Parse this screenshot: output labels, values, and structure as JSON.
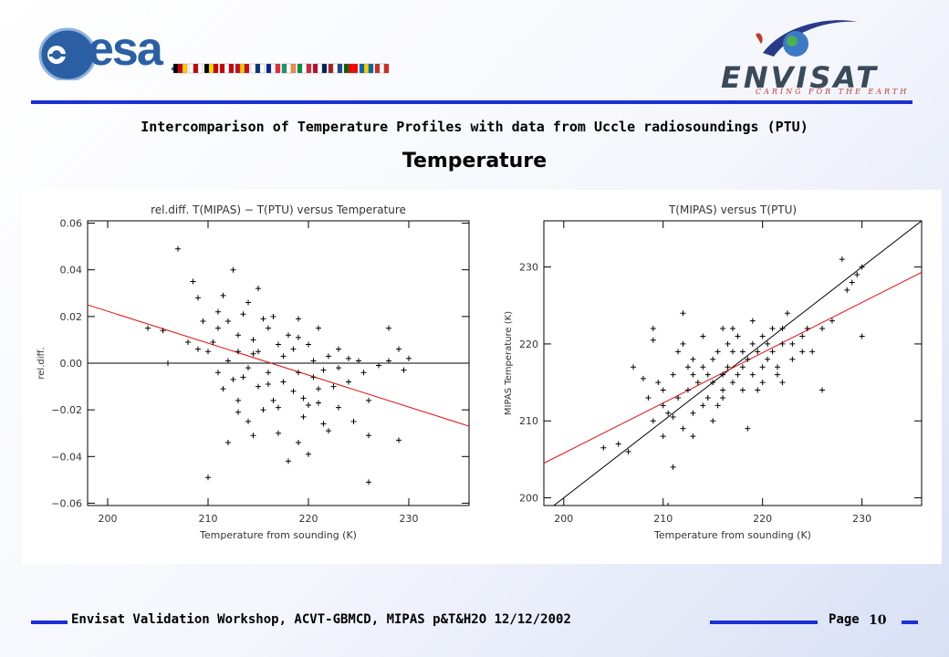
{
  "header": {
    "esa_logo_text": "esa",
    "envisat_logo_text": "ENVISAT",
    "envisat_tagline": "CARING FOR THE EARTH",
    "flag_colors": [
      [
        "#000000",
        "#d00000",
        "#ffce00"
      ],
      [
        "#ffffff",
        "#d00000",
        "#ffffff"
      ],
      [
        "#000000",
        "#ffd700",
        "#d00000"
      ],
      [
        "#d00000",
        "#ffffff",
        "#d00000"
      ],
      [
        "#c60b1e",
        "#ffc400",
        "#c60b1e"
      ],
      [
        "#ffffff",
        "#003580",
        "#ffffff"
      ],
      [
        "#002395",
        "#ffffff",
        "#ed2939"
      ],
      [
        "#169b62",
        "#ffffff",
        "#ff883e"
      ],
      [
        "#009246",
        "#ffffff",
        "#ce2b37"
      ],
      [
        "#ba0c2f",
        "#ffffff",
        "#00205b"
      ],
      [
        "#ae1c28",
        "#ffffff",
        "#21468b"
      ],
      [
        "#006600",
        "#ff0000",
        "#ff0000"
      ],
      [
        "#006aa7",
        "#fecc00",
        "#006aa7"
      ],
      [
        "#d52b1e",
        "#ffffff",
        "#d52b1e"
      ]
    ]
  },
  "subtitle": "Intercomparison of Temperature Profiles with data from Uccle radiosoundings (PTU)",
  "heading": "Temperature",
  "footer": {
    "text": "Envisat Validation Workshop, ACVT-GBMCD,  MIPAS p&T&H2O 12/12/2002",
    "page_label": "Page",
    "page_number": "10"
  },
  "colors": {
    "accent_blue": "#1a2fd6",
    "fit_line": "#e01010"
  },
  "chart_data": [
    {
      "type": "scatter",
      "title": "rel.diff. T(MIPAS) − T(PTU) versus Temperature",
      "xlabel": "Temperature from sounding (K)",
      "ylabel": "rel.diff.",
      "xlim": [
        198,
        236
      ],
      "ylim": [
        -0.061,
        0.061
      ],
      "xticks": [
        200,
        210,
        220,
        230
      ],
      "xtick_labels": [
        "200",
        "210",
        "220",
        "230"
      ],
      "yticks": [
        -0.06,
        -0.04,
        -0.02,
        0.0,
        0.02,
        0.04,
        0.06
      ],
      "ytick_labels": [
        "−0.06",
        "−0.04",
        "−0.02",
        "0.00",
        "0.02",
        "0.04",
        "0.06"
      ],
      "grid": false,
      "reference_line": {
        "x": [
          198,
          236
        ],
        "y": [
          0,
          0
        ]
      },
      "fit_line": {
        "x": [
          198,
          236
        ],
        "y": [
          0.025,
          -0.027
        ]
      },
      "points": [
        [
          204,
          0.015
        ],
        [
          205.5,
          0.014
        ],
        [
          206,
          0
        ],
        [
          207,
          0.049
        ],
        [
          208.5,
          0.035
        ],
        [
          209,
          0.028
        ],
        [
          209,
          0.006
        ],
        [
          210,
          0.005
        ],
        [
          210,
          -0.049
        ],
        [
          211,
          0.015
        ],
        [
          211,
          -0.004
        ],
        [
          211.5,
          0.029
        ],
        [
          212,
          -0.034
        ],
        [
          212,
          0.001
        ],
        [
          212.5,
          0.04
        ],
        [
          213,
          0.012
        ],
        [
          213,
          -0.016
        ],
        [
          213.5,
          -0.006
        ],
        [
          214,
          0.026
        ],
        [
          214,
          -0.025
        ],
        [
          214.5,
          0.004
        ],
        [
          215,
          0.032
        ],
        [
          215,
          -0.01
        ],
        [
          215.5,
          0.019
        ],
        [
          216,
          -0.004
        ],
        [
          216,
          0.015
        ],
        [
          216.5,
          -0.016
        ],
        [
          217,
          0.008
        ],
        [
          217,
          -0.03
        ],
        [
          217.5,
          0.003
        ],
        [
          218,
          -0.042
        ],
        [
          218,
          0.012
        ],
        [
          218.5,
          -0.012
        ],
        [
          219,
          0.019
        ],
        [
          219,
          -0.004
        ],
        [
          219.5,
          -0.023
        ],
        [
          220,
          0.008
        ],
        [
          220,
          -0.039
        ],
        [
          220.5,
          -0.006
        ],
        [
          221,
          0.015
        ],
        [
          221,
          -0.017
        ],
        [
          221.5,
          -0.026
        ],
        [
          222,
          0.003
        ],
        [
          222.5,
          -0.01
        ],
        [
          223,
          -0.019
        ],
        [
          223,
          0.006
        ],
        [
          224,
          -0.008
        ],
        [
          224.5,
          -0.025
        ],
        [
          225,
          0.001
        ],
        [
          225.5,
          -0.004
        ],
        [
          226,
          -0.051
        ],
        [
          226,
          -0.016
        ],
        [
          227,
          -0.001
        ],
        [
          228,
          0.015
        ],
        [
          229,
          -0.033
        ],
        [
          229.5,
          -0.003
        ],
        [
          230,
          0.002
        ],
        [
          213,
          0.005
        ],
        [
          214.5,
          0.01
        ],
        [
          215.5,
          -0.02
        ],
        [
          216.5,
          0.02
        ],
        [
          217.5,
          -0.008
        ],
        [
          218.5,
          0.006
        ],
        [
          219.5,
          -0.015
        ],
        [
          220.5,
          0.001
        ],
        [
          221.5,
          -0.003
        ],
        [
          212,
          0.018
        ],
        [
          213.5,
          0.021
        ],
        [
          210.5,
          0.009
        ],
        [
          211.5,
          -0.011
        ],
        [
          217,
          -0.019
        ],
        [
          219,
          -0.034
        ],
        [
          222,
          -0.029
        ],
        [
          224,
          0.002
        ],
        [
          215,
          0.005
        ],
        [
          216,
          -0.009
        ],
        [
          214,
          -0.002
        ],
        [
          211,
          0.022
        ],
        [
          212.5,
          -0.007
        ],
        [
          213,
          -0.021
        ],
        [
          219,
          0.011
        ],
        [
          220,
          -0.018
        ],
        [
          221,
          -0.011
        ],
        [
          223,
          -0.002
        ],
        [
          226,
          -0.031
        ],
        [
          228,
          0.001
        ],
        [
          229,
          0.006
        ],
        [
          208,
          0.009
        ],
        [
          209.5,
          0.018
        ],
        [
          214.5,
          -0.031
        ]
      ]
    },
    {
      "type": "scatter",
      "title": "T(MIPAS) versus T(PTU)",
      "xlabel": "Temperature from sounding (K)",
      "ylabel": "MIPAS Temperature (K)",
      "xlim": [
        198,
        236
      ],
      "ylim": [
        199,
        236
      ],
      "xticks": [
        200,
        210,
        220,
        230
      ],
      "xtick_labels": [
        "200",
        "210",
        "220",
        "230"
      ],
      "yticks": [
        200,
        210,
        220,
        230
      ],
      "ytick_labels": [
        "200",
        "210",
        "220",
        "230"
      ],
      "grid": false,
      "reference_line": {
        "x": [
          198,
          236
        ],
        "y": [
          198,
          236
        ]
      },
      "fit_line": {
        "x": [
          198,
          236
        ],
        "y": [
          204.5,
          229.3
        ]
      },
      "points": [
        [
          204,
          206.5
        ],
        [
          205.5,
          207
        ],
        [
          206.5,
          206
        ],
        [
          207,
          217
        ],
        [
          208,
          215.5
        ],
        [
          208.5,
          213
        ],
        [
          209,
          210
        ],
        [
          209,
          222
        ],
        [
          210,
          214
        ],
        [
          210,
          208
        ],
        [
          210.5,
          211
        ],
        [
          211,
          216
        ],
        [
          211,
          204
        ],
        [
          211.5,
          213
        ],
        [
          212,
          220
        ],
        [
          212,
          224
        ],
        [
          212.5,
          214
        ],
        [
          213,
          218
        ],
        [
          213,
          208
        ],
        [
          213.5,
          215
        ],
        [
          214,
          212
        ],
        [
          214,
          221
        ],
        [
          214.5,
          216
        ],
        [
          215,
          218
        ],
        [
          215,
          210
        ],
        [
          215.5,
          219
        ],
        [
          216,
          214
        ],
        [
          216,
          222
        ],
        [
          216.5,
          217
        ],
        [
          217,
          215
        ],
        [
          217,
          219
        ],
        [
          217.5,
          221
        ],
        [
          218,
          214
        ],
        [
          218,
          217
        ],
        [
          218.5,
          209
        ],
        [
          219,
          216
        ],
        [
          219,
          223
        ],
        [
          219.5,
          219
        ],
        [
          220,
          215
        ],
        [
          220,
          221
        ],
        [
          220.5,
          218
        ],
        [
          221,
          222
        ],
        [
          221.5,
          216
        ],
        [
          222,
          220
        ],
        [
          222.5,
          224
        ],
        [
          223,
          218
        ],
        [
          224,
          221
        ],
        [
          224.5,
          222
        ],
        [
          225,
          219
        ],
        [
          226,
          214
        ],
        [
          226,
          222
        ],
        [
          227,
          223
        ],
        [
          228,
          231
        ],
        [
          228.5,
          227
        ],
        [
          229,
          228
        ],
        [
          229.5,
          229
        ],
        [
          230,
          230
        ],
        [
          230,
          221
        ],
        [
          212,
          209
        ],
        [
          213,
          211
        ],
        [
          214.5,
          213
        ],
        [
          215.5,
          212
        ],
        [
          216.5,
          220
        ],
        [
          217.5,
          216
        ],
        [
          218.5,
          218
        ],
        [
          219.5,
          214
        ],
        [
          220.5,
          220
        ],
        [
          221.5,
          217
        ],
        [
          222,
          215
        ],
        [
          223,
          220
        ],
        [
          211,
          210.5
        ],
        [
          210,
          212
        ],
        [
          209.5,
          215
        ],
        [
          212.5,
          217
        ],
        [
          214,
          217
        ],
        [
          216,
          213
        ],
        [
          217,
          222
        ],
        [
          219,
          220
        ],
        [
          220,
          217
        ],
        [
          221,
          219
        ],
        [
          222,
          222
        ],
        [
          224,
          219
        ],
        [
          215,
          215
        ],
        [
          216,
          216
        ],
        [
          218,
          219
        ],
        [
          213,
          216
        ],
        [
          211.5,
          219
        ],
        [
          209,
          220.5
        ],
        [
          210.5,
          199
        ]
      ]
    }
  ]
}
